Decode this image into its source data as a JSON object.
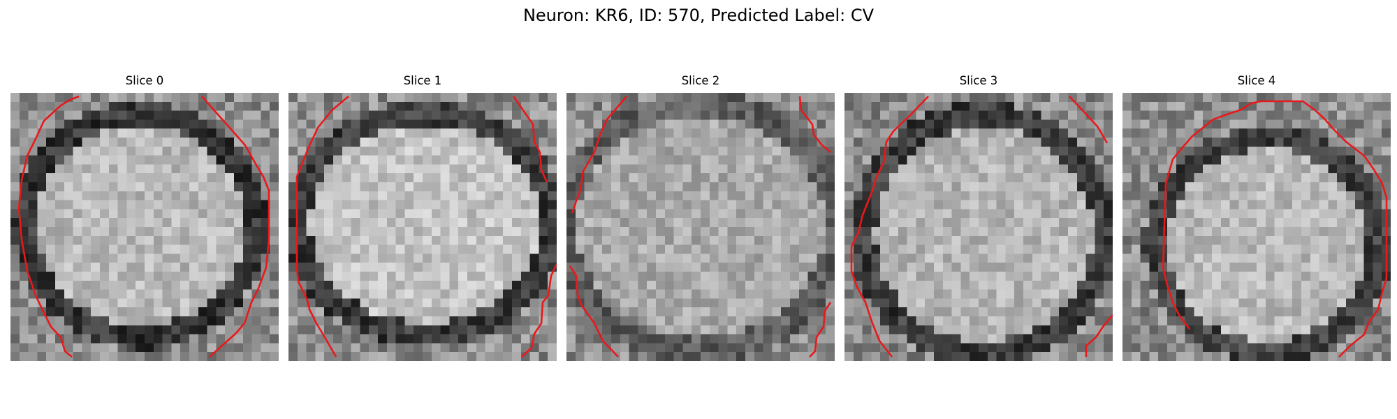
{
  "figure": {
    "title": "Neuron: KR6, ID: 570, Predicted Label: CV"
  },
  "panels": [
    {
      "title": "Slice 0"
    },
    {
      "title": "Slice 1"
    },
    {
      "title": "Slice 2"
    },
    {
      "title": "Slice 3"
    },
    {
      "title": "Slice 4"
    }
  ],
  "colors": {
    "contour": "#e8191b"
  }
}
